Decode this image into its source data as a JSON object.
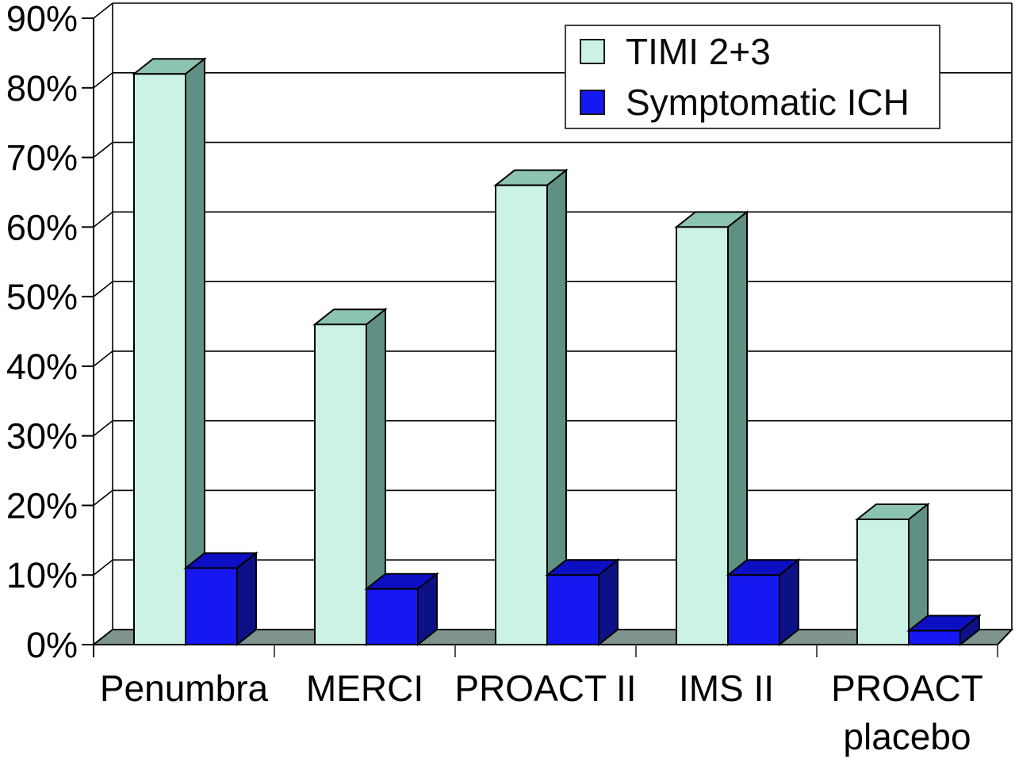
{
  "chart_data": {
    "type": "bar",
    "variant": "3d-column",
    "title": "",
    "xlabel": "",
    "ylabel": "",
    "ylim": [
      0,
      90
    ],
    "grid": true,
    "legend_position": "top-right",
    "y_tick_labels": [
      "0%",
      "10%",
      "20%",
      "30%",
      "40%",
      "50%",
      "60%",
      "70%",
      "80%",
      "90%"
    ],
    "categories": [
      "Penumbra",
      "MERCI",
      "PROACT II",
      "IMS II",
      "PROACT placebo"
    ],
    "category_display_lines": [
      [
        "Penumbra"
      ],
      [
        "MERCI"
      ],
      [
        "PROACT II"
      ],
      [
        "IMS II"
      ],
      [
        "PROACT",
        "placebo"
      ]
    ],
    "series": [
      {
        "name": "TIMI 2+3",
        "values": [
          82,
          46,
          66,
          60,
          18
        ],
        "color": "#CBF2E4",
        "top_color": "#8CC4AF",
        "side_color": "#5F9083"
      },
      {
        "name": "Symptomatic ICH",
        "values": [
          11,
          8,
          10,
          10,
          2
        ],
        "color": "#1518F0",
        "top_color": "#0C10C2",
        "side_color": "#0D1186"
      }
    ],
    "colors": {
      "floor": "#7E948C",
      "wall_background": "#FFFFFF",
      "line": "#000000",
      "text": "#000000"
    }
  }
}
